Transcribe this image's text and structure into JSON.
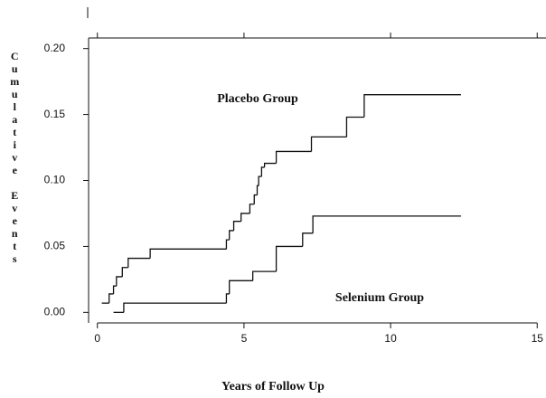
{
  "chart_data": {
    "type": "step",
    "ylabel": "Cumulative Events",
    "xlabel": "Years of Follow Up",
    "xlim": [
      -0.3,
      15.3
    ],
    "ylim": [
      -0.008,
      0.208
    ],
    "xticks": [
      0,
      5,
      10,
      15
    ],
    "yticks": [
      {
        "value": 0,
        "label": "0.00"
      },
      {
        "value": 0.05,
        "label": "0.05"
      },
      {
        "value": 0.1,
        "label": "0.10"
      },
      {
        "value": 0.15,
        "label": "0.15"
      },
      {
        "value": 0.2,
        "label": "0.20"
      }
    ],
    "annotations": [
      "Placebo Group",
      "Selenium Group"
    ],
    "series": [
      {
        "name": "Placebo Group",
        "color": "#111111",
        "x": [
          0.15,
          0.4,
          0.55,
          0.65,
          0.85,
          1.05,
          1.8,
          4.4,
          4.5,
          4.65,
          4.9,
          5.2,
          5.35,
          5.45,
          5.5,
          5.6,
          5.7,
          6.1,
          7.3,
          8.5,
          9.1,
          12.4
        ],
        "values": [
          0.007,
          0.014,
          0.02,
          0.027,
          0.034,
          0.041,
          0.048,
          0.055,
          0.062,
          0.069,
          0.075,
          0.082,
          0.089,
          0.096,
          0.103,
          0.11,
          0.113,
          0.122,
          0.133,
          0.148,
          0.165,
          0.165
        ]
      },
      {
        "name": "Selenium Group",
        "color": "#111111",
        "x": [
          0.55,
          0.9,
          4.4,
          4.5,
          5.3,
          6.1,
          7.0,
          7.35,
          12.4
        ],
        "values": [
          0.0,
          0.007,
          0.014,
          0.024,
          0.031,
          0.05,
          0.06,
          0.073,
          0.073
        ]
      }
    ]
  }
}
